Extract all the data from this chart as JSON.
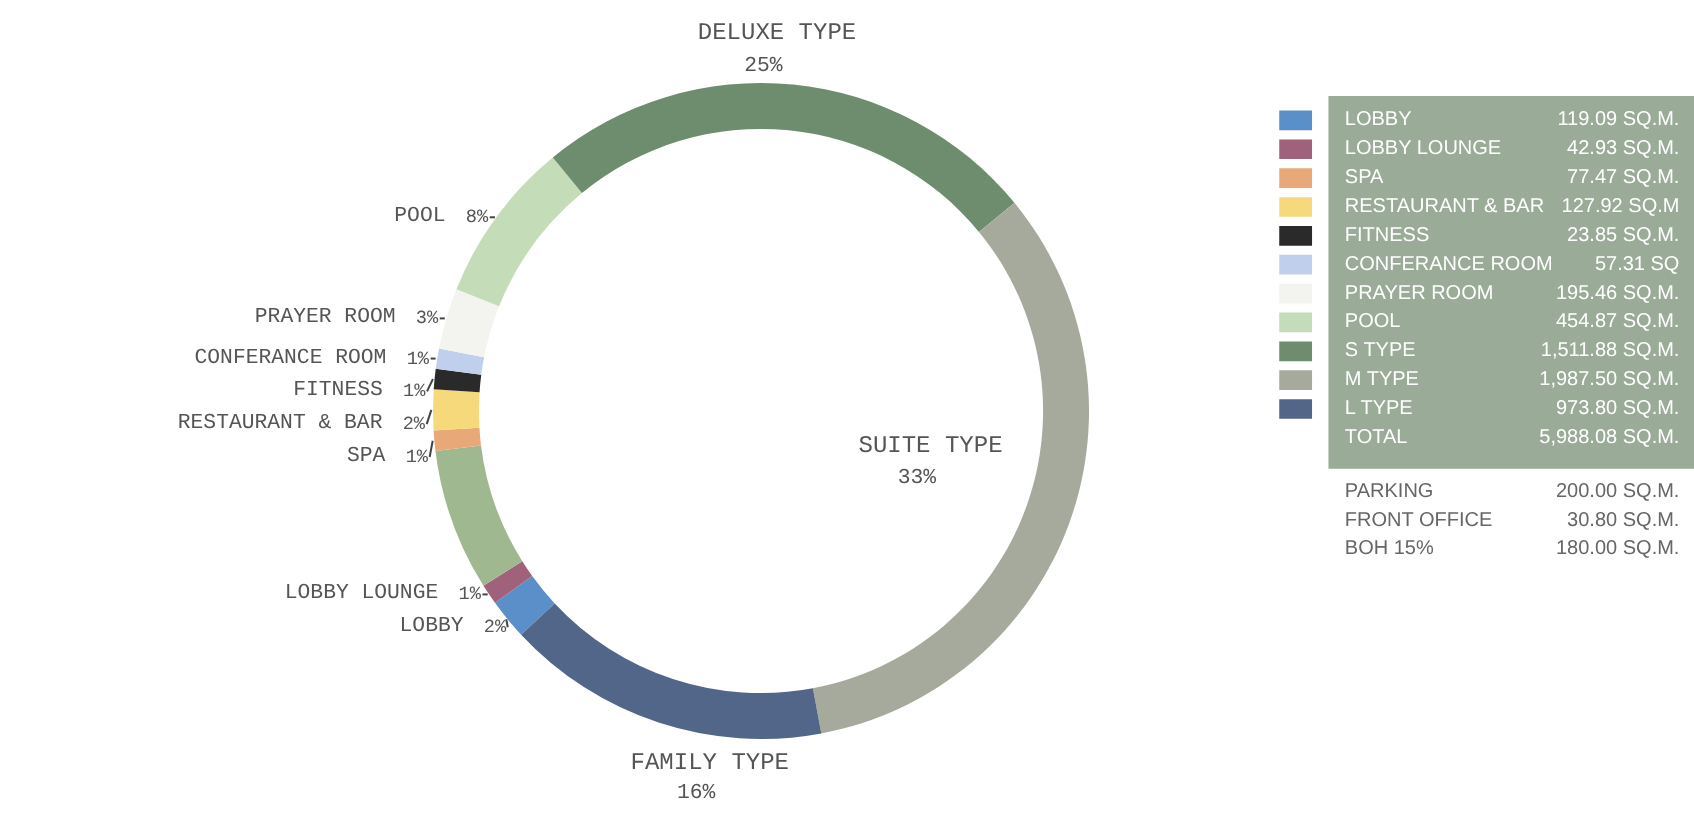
{
  "chart_data": {
    "type": "donut",
    "categories": [
      "LOBBY",
      "LOBBY LOUNGE",
      null,
      "SPA",
      "RESTAURANT & BAR",
      "FITNESS",
      "CONFERANCE ROOM",
      "PRAYER ROOM",
      "POOL",
      "S TYPE",
      "M TYPE",
      "L TYPE"
    ],
    "values": [
      2,
      1,
      7,
      1,
      2,
      1,
      1,
      3,
      8,
      25,
      33,
      16
    ],
    "value_labels": [
      "2%",
      "1%",
      null,
      "1%",
      "2%",
      "1%",
      "1%",
      "3%",
      "8%",
      "25%",
      "33%",
      "16%"
    ],
    "colors": [
      "#5b8fc9",
      "#a0627a",
      "#9fb890",
      "#e8a878",
      "#f5d97a",
      "#2a2a2a",
      "#c0d0ec",
      "#f3f3ef",
      "#c4dcb8",
      "#6e8c6e",
      "#a6aa9c",
      "#52668a"
    ],
    "legend": "right",
    "annotations": [
      "DELUXE TYPE",
      "SUITE TYPE",
      "FAMILY TYPE",
      "119.09 SQ.M.",
      "42.93 SQ.M.",
      "77.47 SQ.M.",
      "127.92 SQ.M",
      "23.85 SQ.M.",
      "57.31 SQ",
      "195.46 SQ.M.",
      "454.87 SQ.M.",
      "1,511.88 SQ.M.",
      "1,987.50 SQ.M.",
      "973.80 SQ.M.",
      "TOTAL",
      "5,988.08 SQ.M.",
      "PARKING",
      "200.00 SQ.M.",
      "FRONT OFFICE",
      "30.80 SQ.M.",
      "BOH 15%",
      "180.00 SQ.M."
    ]
  }
}
